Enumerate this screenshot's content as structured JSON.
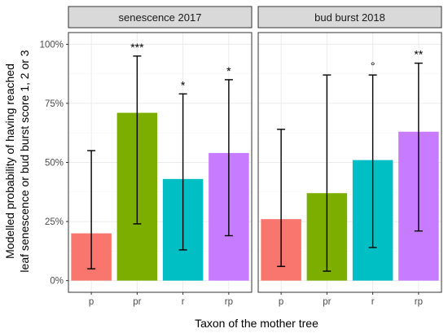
{
  "chart_data": {
    "type": "bar",
    "ylabel": "Modelled probability of having reached leaf senescence or bud burst score 1, 2 or 3",
    "ylabel_lines": [
      "Modelled probability of having reached",
      "leaf senescence or bud burst score 1, 2 or 3"
    ],
    "xlabel": "Taxon of the mother tree",
    "ylim": [
      0,
      1
    ],
    "yticks": [
      0,
      0.25,
      0.5,
      0.75,
      1
    ],
    "ytick_labels": [
      "0%",
      "25%",
      "50%",
      "75%",
      "100%"
    ],
    "grid": true,
    "categories": [
      "p",
      "pr",
      "r",
      "rp"
    ],
    "colors": [
      "#F8766D",
      "#7CAE00",
      "#00BFC4",
      "#C77CFF"
    ],
    "panels": [
      {
        "title": "senescence 2017",
        "values": [
          0.2,
          0.71,
          0.43,
          0.54
        ],
        "lower": [
          0.05,
          0.24,
          0.13,
          0.19
        ],
        "upper": [
          0.55,
          0.95,
          0.79,
          0.85
        ],
        "significance": [
          "",
          "***",
          "*",
          "*"
        ]
      },
      {
        "title": "bud burst 2018",
        "values": [
          0.26,
          0.37,
          0.51,
          0.63
        ],
        "lower": [
          0.06,
          0.04,
          0.14,
          0.21
        ],
        "upper": [
          0.64,
          0.87,
          0.87,
          0.92
        ],
        "significance": [
          "",
          "",
          "°",
          "**"
        ]
      }
    ]
  }
}
